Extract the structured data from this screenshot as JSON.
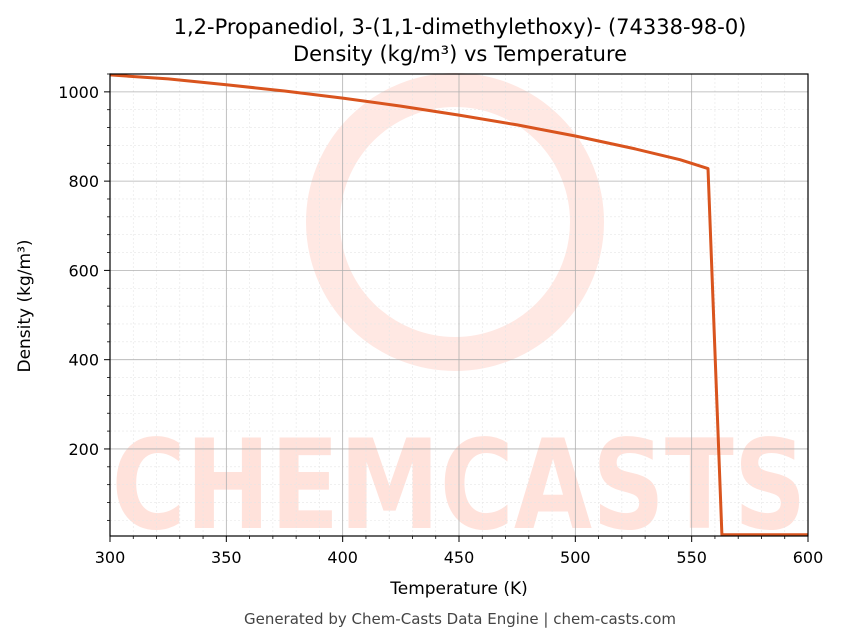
{
  "chart_data": {
    "type": "line",
    "title_line1": "1,2-Propanediol, 3-(1,1-dimethylethoxy)- (74338-98-0)",
    "title_line2": "Density (kg/m³) vs Temperature",
    "xlabel": "Temperature (K)",
    "ylabel": "Density (kg/m³)",
    "xlim": [
      300,
      600
    ],
    "ylim": [
      5,
      1040
    ],
    "x_ticks": [
      300,
      350,
      400,
      450,
      500,
      550,
      600
    ],
    "y_ticks": [
      200,
      400,
      600,
      800,
      1000
    ],
    "grid": true,
    "line_color": "#d9541e",
    "watermark_text": "CHEMCASTS",
    "watermark_color": "#ffd6cc",
    "series": [
      {
        "x": [
          300,
          325,
          350,
          375,
          400,
          425,
          450,
          475,
          500,
          525,
          545,
          557,
          563,
          570,
          600
        ],
        "y": [
          1038,
          1029,
          1016,
          1002,
          986,
          968,
          948,
          926,
          901,
          873,
          848,
          828,
          8,
          8,
          8
        ]
      }
    ]
  },
  "footer": "Generated by Chem-Casts Data Engine | chem-casts.com"
}
